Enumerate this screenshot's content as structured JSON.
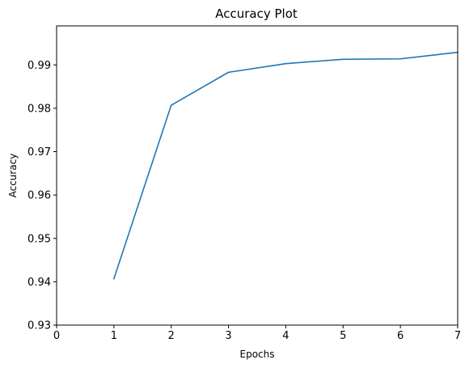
{
  "chart_data": {
    "type": "line",
    "title": "Accuracy Plot",
    "xlabel": "Epochs",
    "ylabel": "Accuracy",
    "xlim": [
      0,
      7
    ],
    "ylim": [
      0.93,
      0.999
    ],
    "xticks": [
      0,
      1,
      2,
      3,
      4,
      5,
      6,
      7
    ],
    "yticks": [
      0.93,
      0.94,
      0.95,
      0.96,
      0.97,
      0.98,
      0.99
    ],
    "ytick_labels": [
      "0.93",
      "0.94",
      "0.95",
      "0.96",
      "0.97",
      "0.98",
      "0.99"
    ],
    "grid": false,
    "series": [
      {
        "color": "#1f77b4",
        "x": [
          1,
          2,
          3,
          4,
          5,
          6,
          7
        ],
        "y": [
          0.9407,
          0.9807,
          0.9883,
          0.9903,
          0.9913,
          0.9914,
          0.9929
        ]
      }
    ]
  }
}
